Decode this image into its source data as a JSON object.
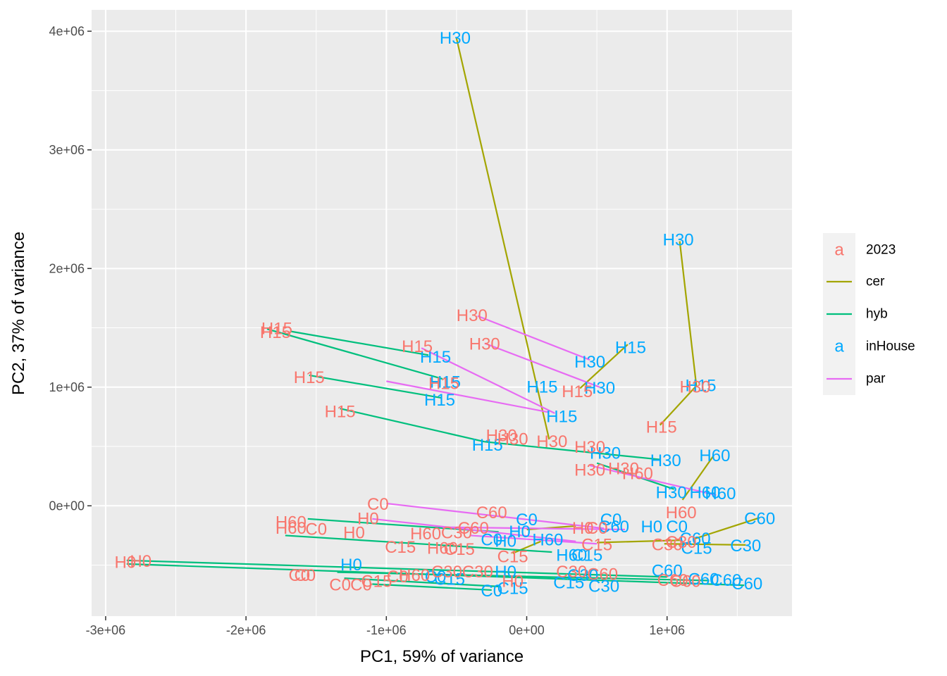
{
  "chart_data": {
    "type": "scatter",
    "xlabel": "PC1, 59% of variance",
    "ylabel": "PC2, 37% of variance",
    "xlim": [
      -3100000,
      1890000
    ],
    "ylim": [
      -930000,
      4180000
    ],
    "x_ticks": [
      {
        "value": -3000000,
        "label": "-3e+06"
      },
      {
        "value": -2000000,
        "label": "-2e+06"
      },
      {
        "value": -1000000,
        "label": "-1e+06"
      },
      {
        "value": 0,
        "label": "0e+00"
      },
      {
        "value": 1000000,
        "label": "1e+06"
      }
    ],
    "y_ticks": [
      {
        "value": 0,
        "label": "0e+00"
      },
      {
        "value": 1000000,
        "label": "1e+06"
      },
      {
        "value": 2000000,
        "label": "2e+06"
      },
      {
        "value": 3000000,
        "label": "3e+06"
      },
      {
        "value": 4000000,
        "label": "4e+06"
      }
    ],
    "grid": true,
    "colors": {
      "2023": "#F8766D",
      "inHouse": "#00A9FF",
      "cer": "#A3A500",
      "hyb": "#00BF7D",
      "par": "#E76BF3"
    },
    "legend": {
      "position": "right",
      "items": [
        {
          "key": "2023",
          "label": "2023",
          "glyph": "a"
        },
        {
          "key": "cer",
          "label": "cer"
        },
        {
          "key": "hyb",
          "label": "hyb"
        },
        {
          "key": "inHouse",
          "label": "inHouse",
          "glyph": "a"
        },
        {
          "key": "par",
          "label": "par"
        }
      ]
    },
    "segments": [
      {
        "group": "cer",
        "x1": -500000,
        "y1": 3940000,
        "x2": 160000,
        "y2": 560000
      },
      {
        "group": "cer",
        "x1": 1090000,
        "y1": 2230000,
        "x2": 1210000,
        "y2": 1000000
      },
      {
        "group": "cer",
        "x1": 720000,
        "y1": 1360000,
        "x2": 380000,
        "y2": 990000
      },
      {
        "group": "cer",
        "x1": 1200000,
        "y1": 1000000,
        "x2": 950000,
        "y2": 680000
      },
      {
        "group": "cer",
        "x1": 1330000,
        "y1": 420000,
        "x2": 1110000,
        "y2": 50000
      },
      {
        "group": "cer",
        "x1": 1660000,
        "y1": -100000,
        "x2": 1190000,
        "y2": -280000
      },
      {
        "group": "cer",
        "x1": 1560000,
        "y1": -330000,
        "x2": 980000,
        "y2": -320000
      },
      {
        "group": "cer",
        "x1": 350000,
        "y1": -170000,
        "x2": 0,
        "y2": -200000
      },
      {
        "group": "cer",
        "x1": 100000,
        "y1": -300000,
        "x2": -100000,
        "y2": -400000
      },
      {
        "group": "cer",
        "x1": 1100000,
        "y1": -290000,
        "x2": 500000,
        "y2": -310000
      },
      {
        "group": "hyb",
        "x1": -1850000,
        "y1": 1490000,
        "x2": -600000,
        "y2": 1070000
      },
      {
        "group": "hyb",
        "x1": -1680000,
        "y1": 1470000,
        "x2": -700000,
        "y2": 1270000
      },
      {
        "group": "hyb",
        "x1": -1550000,
        "y1": 1100000,
        "x2": -610000,
        "y2": 910000
      },
      {
        "group": "hyb",
        "x1": -1330000,
        "y1": 820000,
        "x2": -300000,
        "y2": 540000
      },
      {
        "group": "hyb",
        "x1": -300000,
        "y1": 540000,
        "x2": 950000,
        "y2": 390000
      },
      {
        "group": "hyb",
        "x1": 500000,
        "y1": 360000,
        "x2": 1050000,
        "y2": 140000
      },
      {
        "group": "hyb",
        "x1": -1560000,
        "y1": -110000,
        "x2": -200000,
        "y2": -220000
      },
      {
        "group": "hyb",
        "x1": -1720000,
        "y1": -250000,
        "x2": 180000,
        "y2": -390000
      },
      {
        "group": "hyb",
        "x1": -2850000,
        "y1": -460000,
        "x2": 1000000,
        "y2": -600000
      },
      {
        "group": "hyb",
        "x1": -2850000,
        "y1": -490000,
        "x2": 1550000,
        "y2": -670000
      },
      {
        "group": "hyb",
        "x1": -1300000,
        "y1": -610000,
        "x2": -200000,
        "y2": -680000
      },
      {
        "group": "hyb",
        "x1": -1350000,
        "y1": -560000,
        "x2": 1300000,
        "y2": -630000
      },
      {
        "group": "hyb",
        "x1": -1100000,
        "y1": -660000,
        "x2": -250000,
        "y2": -710000
      },
      {
        "group": "par",
        "x1": -350000,
        "y1": 1600000,
        "x2": 450000,
        "y2": 1230000
      },
      {
        "group": "par",
        "x1": -300000,
        "y1": 1370000,
        "x2": 520000,
        "y2": 1000000
      },
      {
        "group": "par",
        "x1": -750000,
        "y1": 1330000,
        "x2": 200000,
        "y2": 780000
      },
      {
        "group": "par",
        "x1": -1000000,
        "y1": 1050000,
        "x2": 150000,
        "y2": 790000
      },
      {
        "group": "par",
        "x1": -1000000,
        "y1": 20000,
        "x2": 550000,
        "y2": -190000
      },
      {
        "group": "par",
        "x1": -1100000,
        "y1": -110000,
        "x2": 350000,
        "y2": -300000
      },
      {
        "group": "par",
        "x1": -600000,
        "y1": -180000,
        "x2": 700000,
        "y2": -200000
      },
      {
        "group": "par",
        "x1": 450000,
        "y1": 340000,
        "x2": 1350000,
        "y2": 90000
      },
      {
        "group": "par",
        "x1": -400000,
        "y1": -250000,
        "x2": 500000,
        "y2": -320000
      }
    ],
    "labels": [
      {
        "text": "H30",
        "group": "inHouse",
        "x": -510000,
        "y": 3940000
      },
      {
        "text": "H30",
        "group": "inHouse",
        "x": 1080000,
        "y": 2240000
      },
      {
        "text": "H15",
        "group": "inHouse",
        "x": 740000,
        "y": 1330000
      },
      {
        "text": "H30",
        "group": "inHouse",
        "x": 450000,
        "y": 1210000
      },
      {
        "text": "H30",
        "group": "inHouse",
        "x": 520000,
        "y": 990000
      },
      {
        "text": "H15",
        "group": "inHouse",
        "x": 1240000,
        "y": 1010000
      },
      {
        "text": "H15",
        "group": "inHouse",
        "x": 110000,
        "y": 1000000
      },
      {
        "text": "H15",
        "group": "inHouse",
        "x": 250000,
        "y": 750000
      },
      {
        "text": "H15",
        "group": "inHouse",
        "x": -650000,
        "y": 1250000
      },
      {
        "text": "H15",
        "group": "inHouse",
        "x": -580000,
        "y": 1040000
      },
      {
        "text": "H15",
        "group": "inHouse",
        "x": -620000,
        "y": 890000
      },
      {
        "text": "H15",
        "group": "inHouse",
        "x": -280000,
        "y": 510000
      },
      {
        "text": "H30",
        "group": "inHouse",
        "x": 560000,
        "y": 440000
      },
      {
        "text": "H30",
        "group": "inHouse",
        "x": 990000,
        "y": 380000
      },
      {
        "text": "H60",
        "group": "inHouse",
        "x": 1340000,
        "y": 420000
      },
      {
        "text": "H30",
        "group": "inHouse",
        "x": 1030000,
        "y": 110000
      },
      {
        "text": "H60",
        "group": "inHouse",
        "x": 1270000,
        "y": 110000
      },
      {
        "text": "H60",
        "group": "inHouse",
        "x": 1380000,
        "y": 100000
      },
      {
        "text": "C60",
        "group": "inHouse",
        "x": 1660000,
        "y": -110000
      },
      {
        "text": "C0",
        "group": "inHouse",
        "x": 0,
        "y": -120000
      },
      {
        "text": "C0",
        "group": "inHouse",
        "x": 600000,
        "y": -120000
      },
      {
        "text": "C60",
        "group": "inHouse",
        "x": 620000,
        "y": -180000
      },
      {
        "text": "H0",
        "group": "inHouse",
        "x": 890000,
        "y": -180000
      },
      {
        "text": "C0",
        "group": "inHouse",
        "x": 1070000,
        "y": -180000
      },
      {
        "text": "H0",
        "group": "inHouse",
        "x": -50000,
        "y": -220000
      },
      {
        "text": "C60",
        "group": "inHouse",
        "x": 1200000,
        "y": -280000
      },
      {
        "text": "C30",
        "group": "inHouse",
        "x": 1560000,
        "y": -340000
      },
      {
        "text": "C15",
        "group": "inHouse",
        "x": 1210000,
        "y": -360000
      },
      {
        "text": "H60",
        "group": "inHouse",
        "x": 150000,
        "y": -290000
      },
      {
        "text": "C15",
        "group": "inHouse",
        "x": 430000,
        "y": -420000
      },
      {
        "text": "H60",
        "group": "inHouse",
        "x": 320000,
        "y": -420000
      },
      {
        "text": "C0",
        "group": "inHouse",
        "x": -250000,
        "y": -290000
      },
      {
        "text": "H0",
        "group": "inHouse",
        "x": -150000,
        "y": -300000
      },
      {
        "text": "H0",
        "group": "inHouse",
        "x": -1250000,
        "y": -500000
      },
      {
        "text": "C60",
        "group": "inHouse",
        "x": 1000000,
        "y": -550000
      },
      {
        "text": "C60",
        "group": "inHouse",
        "x": 1260000,
        "y": -620000
      },
      {
        "text": "C60",
        "group": "inHouse",
        "x": 1420000,
        "y": -630000
      },
      {
        "text": "C60",
        "group": "inHouse",
        "x": 1570000,
        "y": -660000
      },
      {
        "text": "C30",
        "group": "inHouse",
        "x": 550000,
        "y": -680000
      },
      {
        "text": "C15",
        "group": "inHouse",
        "x": 300000,
        "y": -650000
      },
      {
        "text": "C0",
        "group": "inHouse",
        "x": -250000,
        "y": -720000
      },
      {
        "text": "C15",
        "group": "inHouse",
        "x": -100000,
        "y": -700000
      },
      {
        "text": "H0",
        "group": "inHouse",
        "x": -150000,
        "y": -560000
      },
      {
        "text": "C30",
        "group": "inHouse",
        "x": 400000,
        "y": -590000
      },
      {
        "text": "C0",
        "group": "inHouse",
        "x": -650000,
        "y": -600000
      },
      {
        "text": "C15",
        "group": "inHouse",
        "x": -550000,
        "y": -620000
      },
      {
        "text": "H15",
        "group": "2023",
        "x": -1780000,
        "y": 1490000
      },
      {
        "text": "H15",
        "group": "2023",
        "x": -1790000,
        "y": 1460000
      },
      {
        "text": "H30",
        "group": "2023",
        "x": -390000,
        "y": 1600000
      },
      {
        "text": "H15",
        "group": "2023",
        "x": -780000,
        "y": 1340000
      },
      {
        "text": "H30",
        "group": "2023",
        "x": -300000,
        "y": 1360000
      },
      {
        "text": "H15",
        "group": "2023",
        "x": -1550000,
        "y": 1080000
      },
      {
        "text": "H15",
        "group": "2023",
        "x": -590000,
        "y": 1030000
      },
      {
        "text": "H15",
        "group": "2023",
        "x": 360000,
        "y": 960000
      },
      {
        "text": "H15",
        "group": "2023",
        "x": -1330000,
        "y": 790000
      },
      {
        "text": "H15",
        "group": "2023",
        "x": 960000,
        "y": 660000
      },
      {
        "text": "H30",
        "group": "2023",
        "x": 1200000,
        "y": 1000000
      },
      {
        "text": "H30",
        "group": "2023",
        "x": -180000,
        "y": 590000
      },
      {
        "text": "H30",
        "group": "2023",
        "x": -100000,
        "y": 560000
      },
      {
        "text": "H30",
        "group": "2023",
        "x": 180000,
        "y": 540000
      },
      {
        "text": "H30",
        "group": "2023",
        "x": 450000,
        "y": 490000
      },
      {
        "text": "H30",
        "group": "2023",
        "x": 450000,
        "y": 300000
      },
      {
        "text": "H30",
        "group": "2023",
        "x": 690000,
        "y": 310000
      },
      {
        "text": "H60",
        "group": "2023",
        "x": 790000,
        "y": 270000
      },
      {
        "text": "H60",
        "group": "2023",
        "x": 1100000,
        "y": -60000
      },
      {
        "text": "C0",
        "group": "2023",
        "x": -1060000,
        "y": 10000
      },
      {
        "text": "H0",
        "group": "2023",
        "x": -1130000,
        "y": -110000
      },
      {
        "text": "C60",
        "group": "2023",
        "x": -250000,
        "y": -60000
      },
      {
        "text": "H60",
        "group": "2023",
        "x": -1680000,
        "y": -140000
      },
      {
        "text": "H60",
        "group": "2023",
        "x": -1680000,
        "y": -190000
      },
      {
        "text": "C0",
        "group": "2023",
        "x": -1500000,
        "y": -200000
      },
      {
        "text": "H0",
        "group": "2023",
        "x": -1230000,
        "y": -230000
      },
      {
        "text": "C60",
        "group": "2023",
        "x": -380000,
        "y": -190000
      },
      {
        "text": "H60",
        "group": "2023",
        "x": -720000,
        "y": -240000
      },
      {
        "text": "C30",
        "group": "2023",
        "x": -500000,
        "y": -230000
      },
      {
        "text": "H0",
        "group": "2023",
        "x": 400000,
        "y": -190000
      },
      {
        "text": "C0",
        "group": "2023",
        "x": 500000,
        "y": -190000
      },
      {
        "text": "C30",
        "group": "2023",
        "x": 1000000,
        "y": -330000
      },
      {
        "text": "C30",
        "group": "2023",
        "x": 1100000,
        "y": -310000
      },
      {
        "text": "C15",
        "group": "2023",
        "x": -900000,
        "y": -350000
      },
      {
        "text": "H60",
        "group": "2023",
        "x": -600000,
        "y": -360000
      },
      {
        "text": "C15",
        "group": "2023",
        "x": -480000,
        "y": -370000
      },
      {
        "text": "C15",
        "group": "2023",
        "x": 500000,
        "y": -330000
      },
      {
        "text": "C15",
        "group": "2023",
        "x": -100000,
        "y": -430000
      },
      {
        "text": "H0",
        "group": "2023",
        "x": -2860000,
        "y": -480000
      },
      {
        "text": "H0",
        "group": "2023",
        "x": -2750000,
        "y": -470000
      },
      {
        "text": "C0",
        "group": "2023",
        "x": -1620000,
        "y": -590000
      },
      {
        "text": "C0",
        "group": "2023",
        "x": -1580000,
        "y": -590000
      },
      {
        "text": "C0",
        "group": "2023",
        "x": -1330000,
        "y": -670000
      },
      {
        "text": "C0",
        "group": "2023",
        "x": -1180000,
        "y": -670000
      },
      {
        "text": "C15",
        "group": "2023",
        "x": -1070000,
        "y": -640000
      },
      {
        "text": "C0",
        "group": "2023",
        "x": -920000,
        "y": -600000
      },
      {
        "text": "H60",
        "group": "2023",
        "x": -800000,
        "y": -590000
      },
      {
        "text": "C30",
        "group": "2023",
        "x": -570000,
        "y": -560000
      },
      {
        "text": "C30",
        "group": "2023",
        "x": -350000,
        "y": -560000
      },
      {
        "text": "H0",
        "group": "2023",
        "x": -100000,
        "y": -640000
      },
      {
        "text": "C30",
        "group": "2023",
        "x": 320000,
        "y": -560000
      },
      {
        "text": "C60",
        "group": "2023",
        "x": 540000,
        "y": -580000
      },
      {
        "text": "C60",
        "group": "2023",
        "x": 1040000,
        "y": -630000
      },
      {
        "text": "C60",
        "group": "2023",
        "x": 1130000,
        "y": -640000
      }
    ]
  }
}
